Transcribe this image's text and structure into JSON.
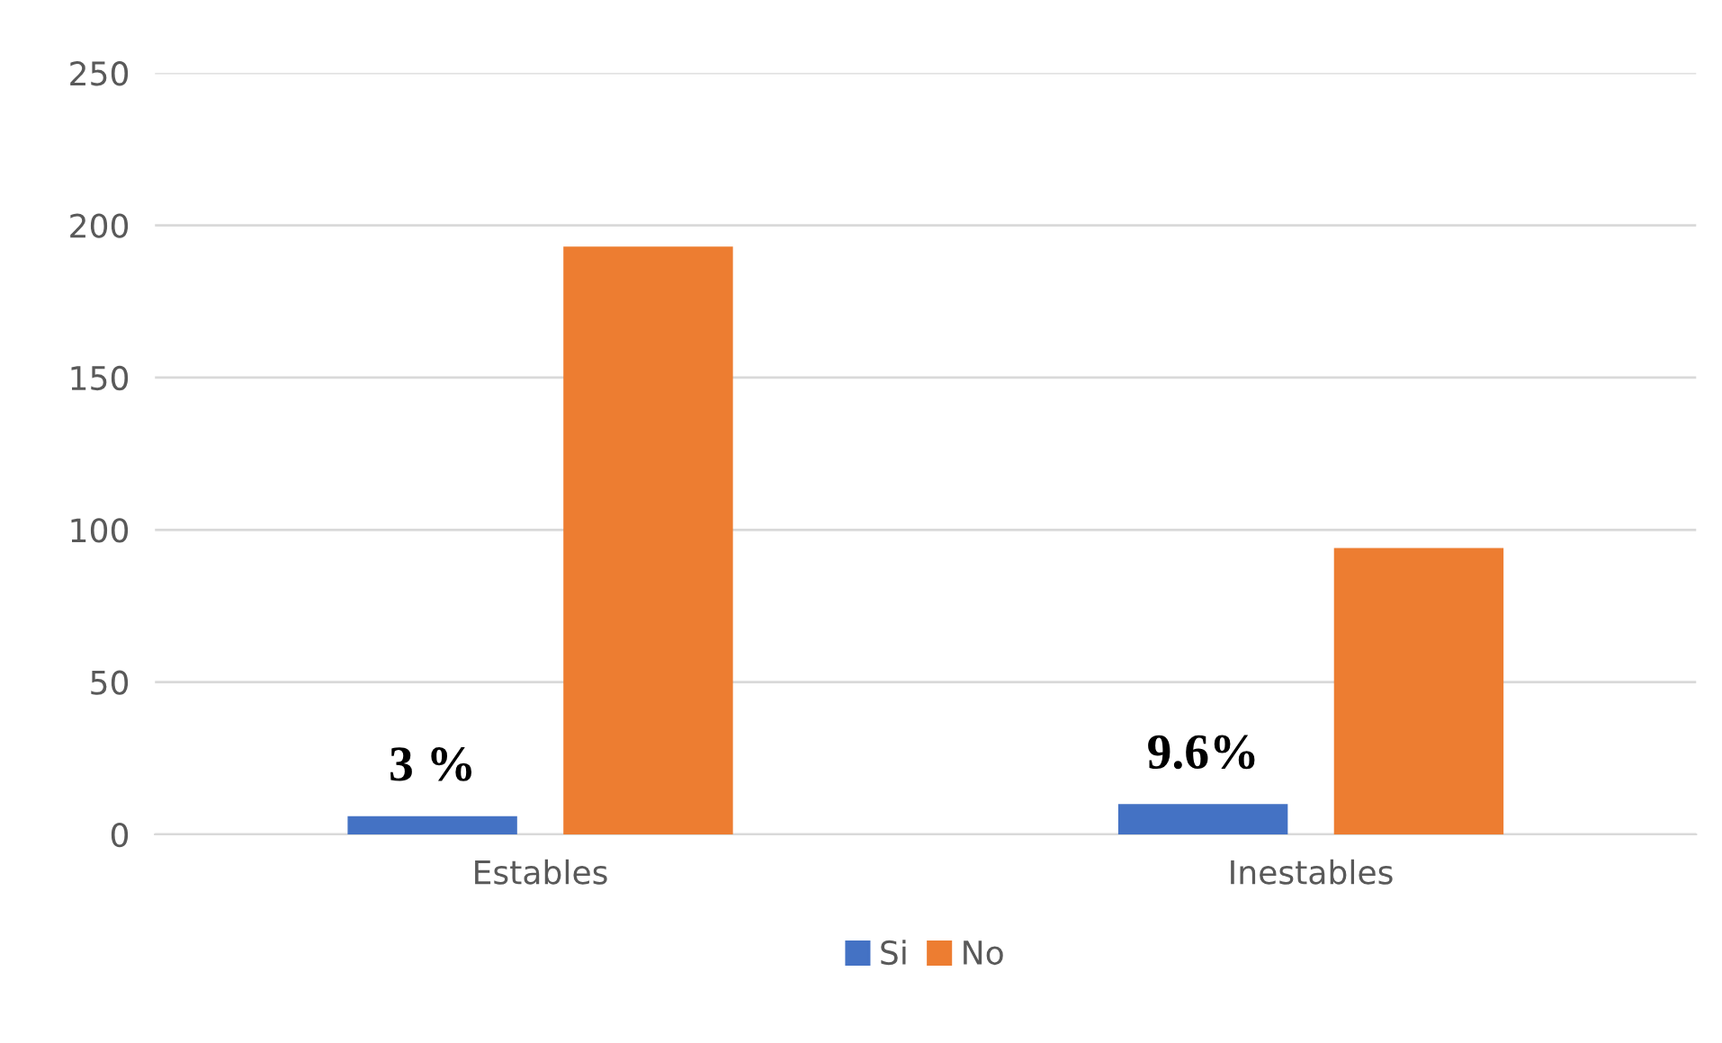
{
  "chart_data": {
    "type": "bar",
    "categories": [
      "Estables",
      "Inestables"
    ],
    "series": [
      {
        "name": "Si",
        "color": "#4472c4",
        "values": [
          6,
          10
        ]
      },
      {
        "name": "No",
        "color": "#ed7d31",
        "values": [
          193,
          94
        ]
      }
    ],
    "annotations": [
      "3 %",
      "9.6%"
    ],
    "ylim": [
      0,
      250
    ],
    "yticks": [
      0,
      50,
      100,
      150,
      200,
      250
    ],
    "grid": "y",
    "legend": "bottom"
  }
}
